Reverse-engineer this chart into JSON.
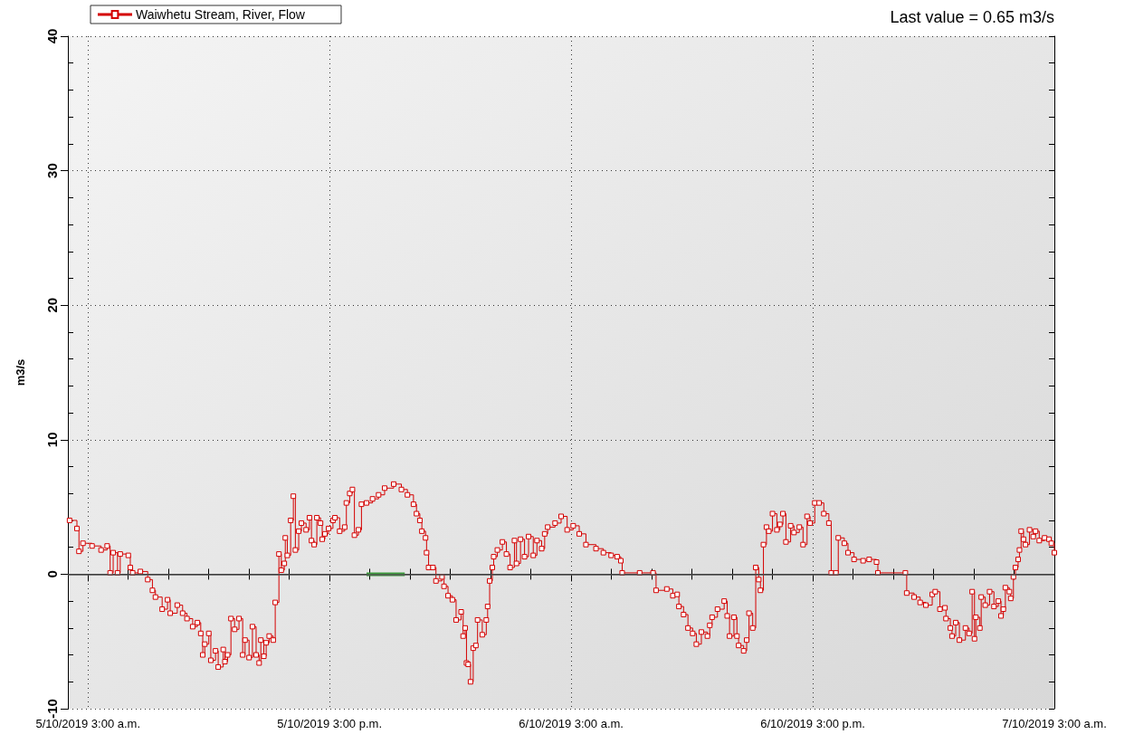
{
  "chart_data": {
    "type": "step",
    "ylabel": "m3/s",
    "annotations": [
      "Last value = 0.65 m3/s"
    ],
    "xlim": [
      "2019-10-05T02:00",
      "2019-10-07T03:00"
    ],
    "xticks": [
      {
        "value": "2019-10-05T03:00",
        "label": "5/10/2019 3:00 a.m."
      },
      {
        "value": "2019-10-05T05:00",
        "label": null
      },
      {
        "value": "2019-10-05T07:00",
        "label": null
      },
      {
        "value": "2019-10-05T09:00",
        "label": null
      },
      {
        "value": "2019-10-05T11:00",
        "label": null
      },
      {
        "value": "2019-10-05T13:00",
        "label": null
      },
      {
        "value": "2019-10-05T15:00",
        "label": "5/10/2019 3:00 p.m."
      },
      {
        "value": "2019-10-05T17:00",
        "label": null
      },
      {
        "value": "2019-10-05T19:00",
        "label": null
      },
      {
        "value": "2019-10-05T21:00",
        "label": null
      },
      {
        "value": "2019-10-05T23:00",
        "label": null
      },
      {
        "value": "2019-10-06T01:00",
        "label": null
      },
      {
        "value": "2019-10-06T03:00",
        "label": "6/10/2019 3:00 a.m."
      },
      {
        "value": "2019-10-06T05:00",
        "label": null
      },
      {
        "value": "2019-10-06T07:00",
        "label": null
      },
      {
        "value": "2019-10-06T09:00",
        "label": null
      },
      {
        "value": "2019-10-06T11:00",
        "label": null
      },
      {
        "value": "2019-10-06T13:00",
        "label": null
      },
      {
        "value": "2019-10-06T15:00",
        "label": "6/10/2019 3:00 p.m."
      },
      {
        "value": "2019-10-06T17:00",
        "label": null
      },
      {
        "value": "2019-10-06T19:00",
        "label": null
      },
      {
        "value": "2019-10-06T21:00",
        "label": null
      },
      {
        "value": "2019-10-06T23:00",
        "label": null
      },
      {
        "value": "2019-10-07T01:00",
        "label": null
      },
      {
        "value": "2019-10-07T03:00",
        "label": "7/10/2019 3:00 a.m."
      }
    ],
    "ylim": [
      -10,
      40
    ],
    "yticks": [
      -10,
      {
        "value": -8,
        "label": null
      },
      {
        "value": -6,
        "label": null
      },
      {
        "value": -4,
        "label": null
      },
      {
        "value": -2,
        "label": null
      },
      0,
      {
        "value": 2,
        "label": null
      },
      {
        "value": 4,
        "label": null
      },
      {
        "value": 6,
        "label": null
      },
      {
        "value": 8,
        "label": null
      },
      10,
      {
        "value": 12,
        "label": null
      },
      {
        "value": 14,
        "label": null
      },
      {
        "value": 16,
        "label": null
      },
      {
        "value": 18,
        "label": null
      },
      20,
      {
        "value": 22,
        "label": null
      },
      {
        "value": 24,
        "label": null
      },
      {
        "value": 26,
        "label": null
      },
      {
        "value": 28,
        "label": null
      },
      30,
      {
        "value": 32,
        "label": null
      },
      {
        "value": 34,
        "label": null
      },
      {
        "value": 36,
        "label": null
      },
      {
        "value": 38,
        "label": null
      },
      40
    ],
    "grid": true,
    "legend": "top left",
    "marker": "square",
    "ref_lines": [
      {
        "axis": "y",
        "value": 0,
        "label": null,
        "color": "#555555"
      }
    ],
    "series": [
      {
        "name": "Waiwhetu Stream, River, Flow",
        "color": "#d40000",
        "x": [
          "2019-10-05T02:05",
          "2019-10-05T02:27",
          "2019-10-05T02:33",
          "2019-10-05T02:45",
          "2019-10-05T03:12",
          "2019-10-05T03:39",
          "2019-10-05T03:57",
          "2019-10-05T04:06",
          "2019-10-05T04:15",
          "2019-10-05T04:28",
          "2019-10-05T04:36",
          "2019-10-05T05:00",
          "2019-10-05T05:06",
          "2019-10-05T05:13",
          "2019-10-05T05:36",
          "2019-10-05T05:58",
          "2019-10-05T06:12",
          "2019-10-05T06:21",
          "2019-10-05T06:41",
          "2019-10-05T06:57",
          "2019-10-05T07:05",
          "2019-10-05T07:26",
          "2019-10-05T07:42",
          "2019-10-05T07:55",
          "2019-10-05T08:12",
          "2019-10-05T08:26",
          "2019-10-05T08:36",
          "2019-10-05T08:42",
          "2019-10-05T08:48",
          "2019-10-05T09:00",
          "2019-10-05T09:06",
          "2019-10-05T09:20",
          "2019-10-05T09:28",
          "2019-10-05T09:43",
          "2019-10-05T09:48",
          "2019-10-05T09:56",
          "2019-10-05T10:06",
          "2019-10-05T10:17",
          "2019-10-05T10:30",
          "2019-10-05T10:41",
          "2019-10-05T10:48",
          "2019-10-05T11:00",
          "2019-10-05T11:10",
          "2019-10-05T11:21",
          "2019-10-05T11:30",
          "2019-10-05T11:35",
          "2019-10-05T11:44",
          "2019-10-05T11:51",
          "2019-10-05T12:00",
          "2019-10-05T12:12",
          "2019-10-05T12:18",
          "2019-10-05T12:29",
          "2019-10-05T12:36",
          "2019-10-05T12:45",
          "2019-10-05T12:48",
          "2019-10-05T12:54",
          "2019-10-05T13:04",
          "2019-10-05T13:12",
          "2019-10-05T13:18",
          "2019-10-05T13:28",
          "2019-10-05T13:36",
          "2019-10-05T13:50",
          "2019-10-05T14:00",
          "2019-10-05T14:06",
          "2019-10-05T14:14",
          "2019-10-05T14:22",
          "2019-10-05T14:33",
          "2019-10-05T14:38",
          "2019-10-05T14:46",
          "2019-10-05T14:57",
          "2019-10-05T15:10",
          "2019-10-05T15:16",
          "2019-10-05T15:30",
          "2019-10-05T15:45",
          "2019-10-05T15:50",
          "2019-10-05T16:00",
          "2019-10-05T16:08",
          "2019-10-05T16:14",
          "2019-10-05T16:26",
          "2019-10-05T16:35",
          "2019-10-05T16:50",
          "2019-10-05T17:08",
          "2019-10-05T17:26",
          "2019-10-05T17:44",
          "2019-10-05T18:11",
          "2019-10-05T18:34",
          "2019-10-05T18:52",
          "2019-10-05T19:10",
          "2019-10-05T19:19",
          "2019-10-05T19:29",
          "2019-10-05T19:35",
          "2019-10-05T19:46",
          "2019-10-05T19:49",
          "2019-10-05T19:55",
          "2019-10-05T20:08",
          "2019-10-05T20:17",
          "2019-10-05T20:35",
          "2019-10-05T20:41",
          "2019-10-05T20:53",
          "2019-10-05T21:06",
          "2019-10-05T21:17",
          "2019-10-05T21:32",
          "2019-10-05T21:38",
          "2019-10-05T21:44",
          "2019-10-05T21:48",
          "2019-10-05T21:53",
          "2019-10-05T22:00",
          "2019-10-05T22:08",
          "2019-10-05T22:16",
          "2019-10-05T22:21",
          "2019-10-05T22:35",
          "2019-10-05T22:47",
          "2019-10-05T22:51",
          "2019-10-05T22:57",
          "2019-10-05T23:05",
          "2019-10-05T23:09",
          "2019-10-05T23:20",
          "2019-10-05T23:35",
          "2019-10-05T23:47",
          "2019-10-05T23:58",
          "2019-10-06T00:11",
          "2019-10-06T00:17",
          "2019-10-06T00:29",
          "2019-10-06T00:41",
          "2019-10-06T00:53",
          "2019-10-06T01:07",
          "2019-10-06T01:18",
          "2019-10-06T01:32",
          "2019-10-06T01:41",
          "2019-10-06T01:50",
          "2019-10-06T02:12",
          "2019-10-06T02:30",
          "2019-10-06T02:48",
          "2019-10-06T03:06",
          "2019-10-06T03:24",
          "2019-10-06T03:44",
          "2019-10-06T04:14",
          "2019-10-06T04:36",
          "2019-10-06T04:59",
          "2019-10-06T05:17",
          "2019-10-06T05:28",
          "2019-10-06T05:32",
          "2019-10-06T06:24",
          "2019-10-06T07:04",
          "2019-10-06T07:13",
          "2019-10-06T07:45",
          "2019-10-06T08:03",
          "2019-10-06T08:16",
          "2019-10-06T08:21",
          "2019-10-06T08:35",
          "2019-10-06T08:48",
          "2019-10-06T09:02",
          "2019-10-06T09:13",
          "2019-10-06T09:28",
          "2019-10-06T09:46",
          "2019-10-06T09:53",
          "2019-10-06T10:00",
          "2019-10-06T10:16",
          "2019-10-06T10:36",
          "2019-10-06T10:45",
          "2019-10-06T10:52",
          "2019-10-06T11:05",
          "2019-10-06T11:14",
          "2019-10-06T11:19",
          "2019-10-06T11:34",
          "2019-10-06T11:43",
          "2019-10-06T11:50",
          "2019-10-06T12:01",
          "2019-10-06T12:10",
          "2019-10-06T12:19",
          "2019-10-06T12:24",
          "2019-10-06T12:33",
          "2019-10-06T12:42",
          "2019-10-06T12:49",
          "2019-10-06T13:00",
          "2019-10-06T13:13",
          "2019-10-06T13:22",
          "2019-10-06T13:31",
          "2019-10-06T13:40",
          "2019-10-06T13:54",
          "2019-10-06T14:04",
          "2019-10-06T14:20",
          "2019-10-06T14:31",
          "2019-10-06T14:43",
          "2019-10-06T14:52",
          "2019-10-06T15:06",
          "2019-10-06T15:19",
          "2019-10-06T15:33",
          "2019-10-06T15:48",
          "2019-10-06T15:55",
          "2019-10-06T16:09",
          "2019-10-06T16:16",
          "2019-10-06T16:34",
          "2019-10-06T16:45",
          "2019-10-06T17:03",
          "2019-10-06T17:30",
          "2019-10-06T17:48",
          "2019-10-06T18:10",
          "2019-10-06T18:14",
          "2019-10-06T19:36",
          "2019-10-06T19:40",
          "2019-10-06T20:02",
          "2019-10-06T20:20",
          "2019-10-06T20:37",
          "2019-10-06T20:56",
          "2019-10-06T21:05",
          "2019-10-06T21:19",
          "2019-10-06T21:34",
          "2019-10-06T21:37",
          "2019-10-06T21:50",
          "2019-10-06T21:55",
          "2019-10-06T22:06",
          "2019-10-06T22:17",
          "2019-10-06T22:35",
          "2019-10-06T22:46",
          "2019-10-06T22:55",
          "2019-10-06T23:02",
          "2019-10-06T23:06",
          "2019-10-06T23:18",
          "2019-10-06T23:22",
          "2019-10-06T23:34",
          "2019-10-06T23:47",
          "2019-10-07T00:00",
          "2019-10-07T00:13",
          "2019-10-07T00:21",
          "2019-10-07T00:28",
          "2019-10-07T00:34",
          "2019-10-07T00:46",
          "2019-10-07T00:50",
          "2019-10-07T00:58",
          "2019-10-07T01:04",
          "2019-10-07T01:12",
          "2019-10-07T01:16",
          "2019-10-07T01:21",
          "2019-10-07T01:28",
          "2019-10-07T01:34",
          "2019-10-07T01:46",
          "2019-10-07T01:57",
          "2019-10-07T02:04",
          "2019-10-07T02:15",
          "2019-10-07T02:31",
          "2019-10-07T02:44",
          "2019-10-07T02:51",
          "2019-10-07T03:00"
        ],
        "values": [
          4.0,
          3.4,
          1.7,
          2.3,
          2.1,
          1.8,
          2.1,
          0.1,
          1.6,
          0.1,
          1.5,
          1.4,
          0.5,
          0.1,
          0.2,
          -0.4,
          -1.2,
          -1.7,
          -2.6,
          -1.9,
          -2.9,
          -2.3,
          -2.9,
          -3.3,
          -3.9,
          -3.6,
          -4.4,
          -6.0,
          -5.2,
          -4.4,
          -6.4,
          -5.7,
          -6.9,
          -5.6,
          -6.5,
          -6.0,
          -3.3,
          -4.1,
          -3.3,
          -6.0,
          -4.9,
          -6.2,
          -3.9,
          -6.0,
          -6.6,
          -4.9,
          -6.1,
          -5.1,
          -4.6,
          -4.9,
          -2.1,
          1.5,
          0.3,
          0.8,
          2.7,
          1.4,
          4.0,
          5.8,
          1.8,
          3.2,
          3.8,
          3.3,
          4.2,
          2.5,
          2.2,
          4.2,
          3.8,
          2.6,
          3.0,
          3.4,
          4.0,
          4.2,
          3.2,
          3.5,
          5.3,
          6.0,
          6.3,
          2.9,
          3.3,
          5.2,
          5.3,
          5.6,
          5.9,
          6.4,
          6.7,
          6.3,
          5.9,
          5.2,
          4.5,
          4.0,
          3.2,
          2.7,
          1.6,
          0.5,
          0.5,
          -0.5,
          -0.2,
          -0.9,
          -1.6,
          -1.9,
          -3.4,
          -2.8,
          -4.6,
          -4.0,
          -6.6,
          -6.7,
          -8.0,
          -5.5,
          -5.3,
          -3.4,
          -4.5,
          -3.4,
          -2.4,
          -0.5,
          0.5,
          1.3,
          1.8,
          2.4,
          1.5,
          0.5,
          2.5,
          0.8,
          2.6,
          1.3,
          2.8,
          1.4,
          2.5,
          1.9,
          3.0,
          3.5,
          3.8,
          4.3,
          3.3,
          3.6,
          3.0,
          2.2,
          1.9,
          1.6,
          1.4,
          1.3,
          1.0,
          0.1,
          0.1,
          0.1,
          -1.2,
          -1.1,
          -1.6,
          -1.5,
          -2.4,
          -3.0,
          -4.0,
          -4.4,
          -5.2,
          -4.3,
          -4.6,
          -3.8,
          -3.2,
          -2.6,
          -2.0,
          -3.1,
          -4.6,
          -3.2,
          -4.6,
          -5.3,
          -5.7,
          -4.9,
          -2.9,
          -4.0,
          0.5,
          -0.4,
          -1.2,
          2.2,
          3.5,
          3.2,
          4.5,
          3.3,
          3.7,
          4.5,
          2.4,
          3.6,
          3.1,
          3.5,
          2.2,
          4.3,
          3.8,
          5.3,
          5.3,
          4.5,
          3.8,
          0.1,
          0.1,
          2.7,
          2.3,
          1.6,
          1.1,
          1.0,
          1.1,
          0.9,
          0.1,
          0.1,
          -1.4,
          -1.7,
          -2.1,
          -2.3,
          -1.5,
          -1.3,
          -2.6,
          -2.5,
          -3.3,
          -4.0,
          -4.6,
          -3.6,
          -4.9,
          -4.0,
          -4.4,
          -1.3,
          -4.8,
          -3.2,
          -4.0,
          -1.7,
          -2.3,
          -1.3,
          -2.4,
          -2.0,
          -3.1,
          -2.6,
          -1.0,
          -1.3,
          -1.8,
          -0.2,
          0.5,
          1.1,
          1.8,
          3.2,
          2.6,
          2.2,
          3.3,
          2.8,
          3.2,
          2.5,
          2.7,
          2.6,
          2.3,
          1.6
        ]
      },
      {
        "type": "line",
        "color": "#3a9a3a",
        "marker": "none",
        "x": [
          "2019-10-05T16:50",
          "2019-10-05T18:44"
        ],
        "values": [
          0,
          0
        ]
      }
    ]
  }
}
